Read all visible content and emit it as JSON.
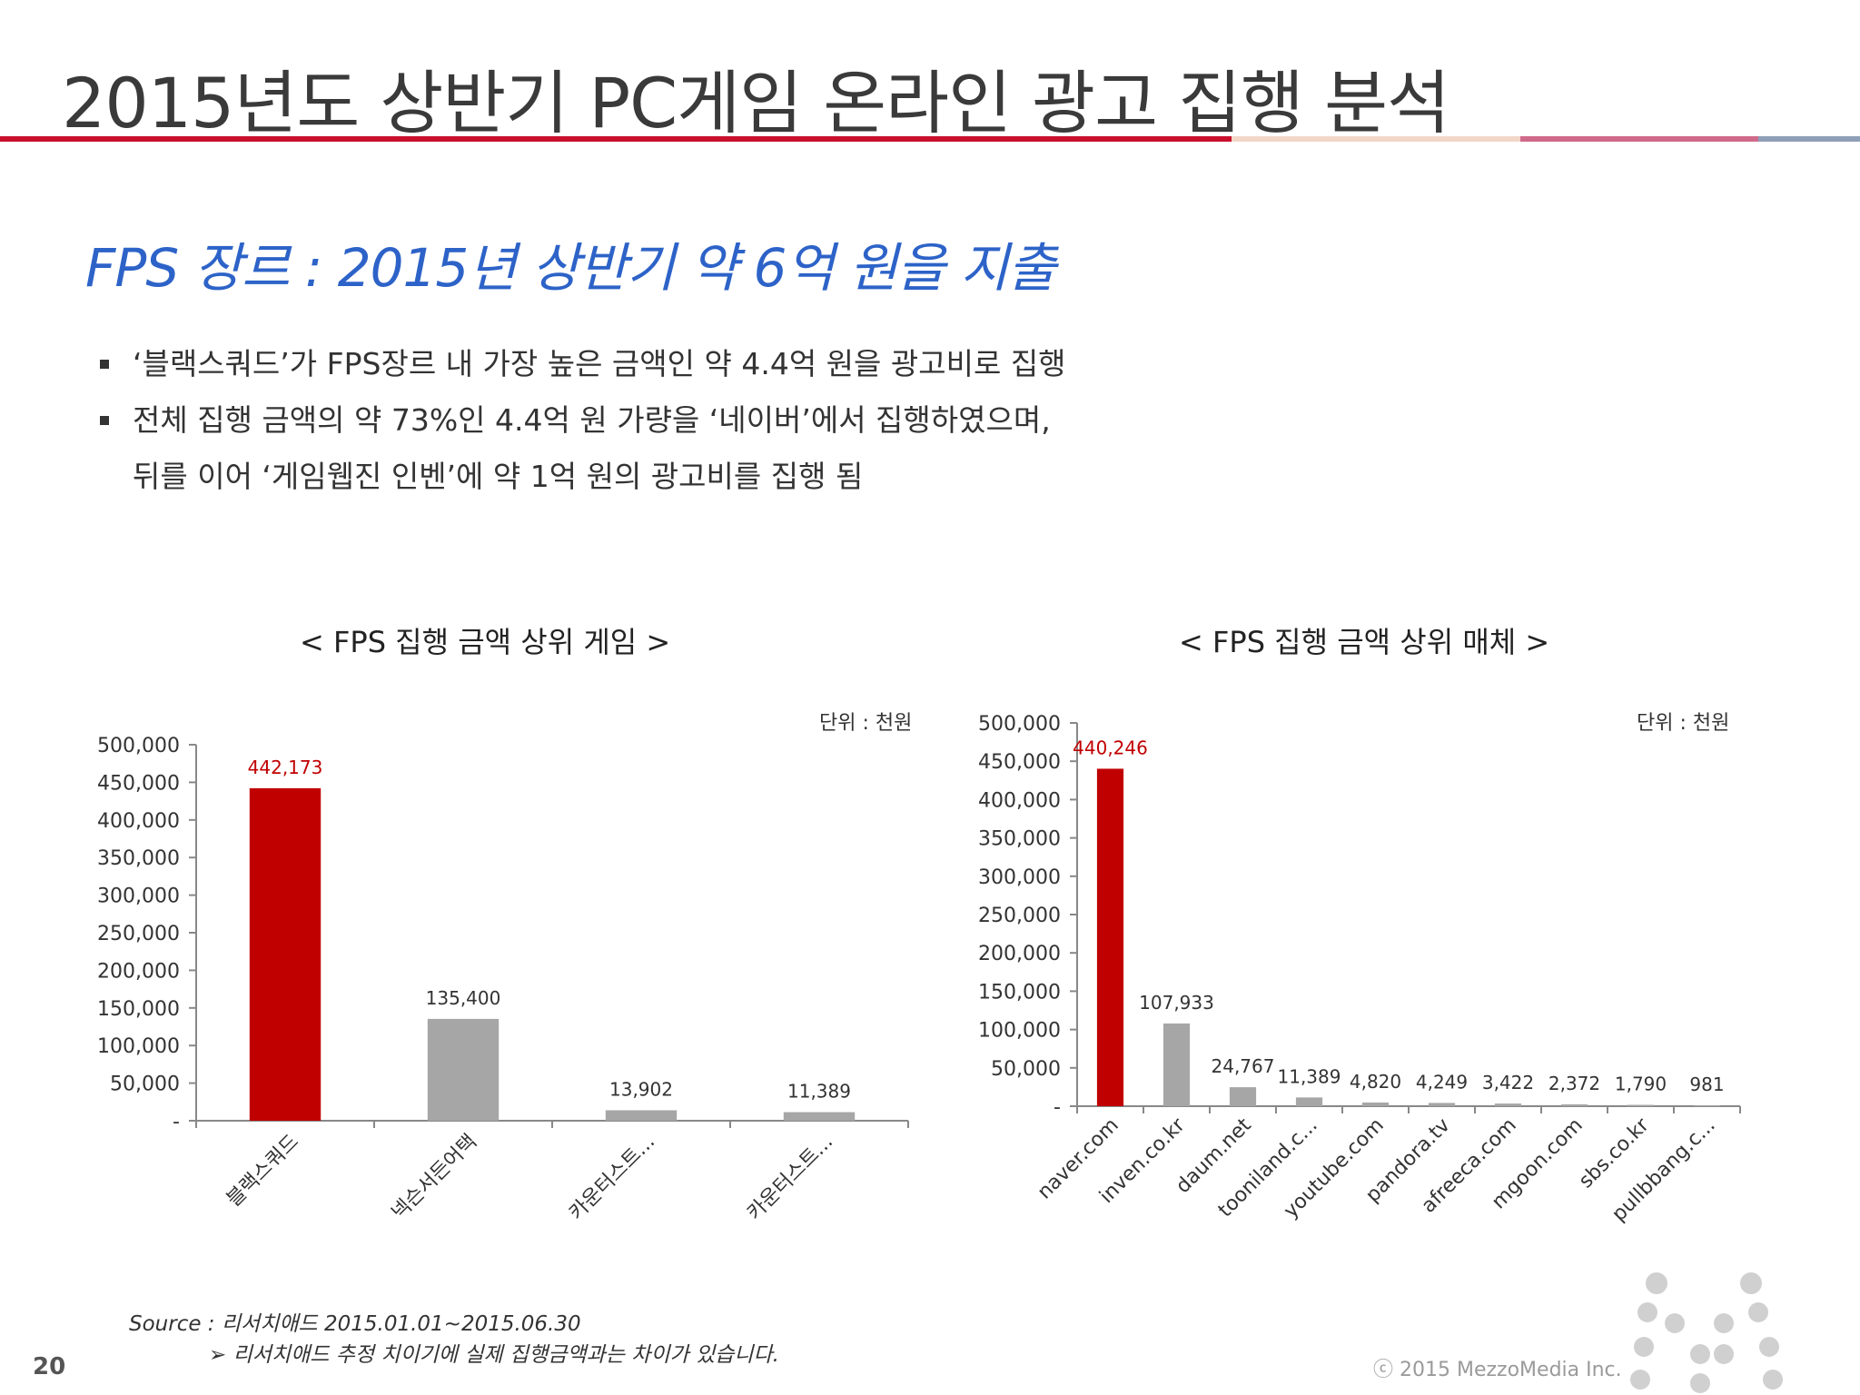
{
  "header": {
    "title": "2015년도 상반기 PC게임 온라인 광고 집행 분석"
  },
  "subtitle": "FPS 장르 : 2015년 상반기 약 6억 원을 지출",
  "bullets": {
    "line1": "‘블랙스쿼드’가 FPS장르 내 가장 높은 금액인 약 4.4억 원을 광고비로 집행",
    "line2": "전체 집행 금액의 약 73%인 4.4억 원 가량을 ‘네이버’에서 집행하였으며,",
    "line3": "뒤를 이어 ‘게임웹진 인벤’에 약 1억 원의 광고비를  집행 됨"
  },
  "chart_data": [
    {
      "type": "bar",
      "title": "< FPS 집행 금액 상위 게임 >",
      "unit": "단위 : 천원",
      "categories": [
        "블랙스쿼드",
        "넥슨서든어택",
        "카운터스트...",
        "카운터스트..."
      ],
      "values": [
        442173,
        135400,
        13902,
        11389
      ],
      "value_labels": [
        "442,173",
        "135,400",
        "13,902",
        "11,389"
      ],
      "highlight_index": 0,
      "ylim": [
        0,
        500000
      ],
      "yticks": [
        0,
        50000,
        100000,
        150000,
        200000,
        250000,
        300000,
        350000,
        400000,
        450000,
        500000
      ],
      "ytick_labels": [
        "-",
        "50,000",
        "100,000",
        "150,000",
        "200,000",
        "250,000",
        "300,000",
        "350,000",
        "400,000",
        "450,000",
        "500,000"
      ],
      "grid": false,
      "legend": "none"
    },
    {
      "type": "bar",
      "title": "< FPS 집행 금액 상위 매체 >",
      "unit": "단위 : 천원",
      "categories": [
        "naver.com",
        "inven.co.kr",
        "daum.net",
        "tooniland.c...",
        "youtube.com",
        "pandora.tv",
        "afreeca.com",
        "mgoon.com",
        "sbs.co.kr",
        "pullbbang.c..."
      ],
      "values": [
        440246,
        107933,
        24767,
        11389,
        4820,
        4249,
        3422,
        2372,
        1790,
        981
      ],
      "value_labels": [
        "440,246",
        "107,933",
        "24,767",
        "11,389",
        "4,820",
        "4,249",
        "3,422",
        "2,372",
        "1,790",
        "981"
      ],
      "highlight_index": 0,
      "ylim": [
        0,
        500000
      ],
      "yticks": [
        0,
        50000,
        100000,
        150000,
        200000,
        250000,
        300000,
        350000,
        400000,
        450000,
        500000
      ],
      "ytick_labels": [
        "-",
        "50,000",
        "100,000",
        "150,000",
        "200,000",
        "250,000",
        "300,000",
        "350,000",
        "400,000",
        "450,000",
        "500,000"
      ],
      "grid": false,
      "legend": "none"
    }
  ],
  "colors": {
    "highlight_bar": "#c00000",
    "normal_bar": "#a6a6a6",
    "highlight_label": "#c00000",
    "accent": "#2d63c8",
    "rule": "#c8102e"
  },
  "footer": {
    "source": "Source : 리서치애드 2015.01.01~2015.06.30",
    "note": "➢ 리서치애드 추정 치이기에 실제 집행금액과는 차이가 있습니다.",
    "page_number": "20",
    "copyright": "ⓒ 2015 MezzoMedia Inc."
  }
}
